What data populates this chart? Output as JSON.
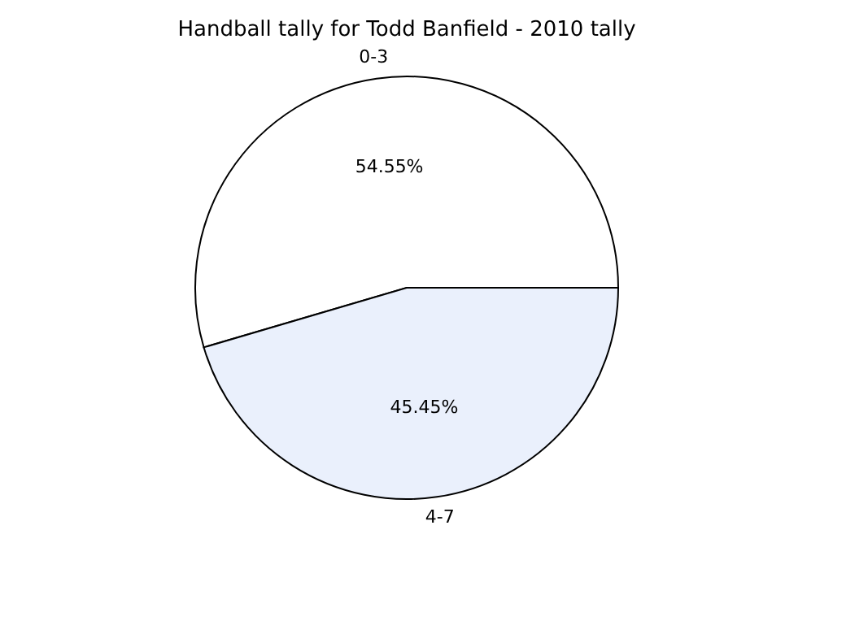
{
  "chart_data": {
    "type": "pie",
    "title": "Handball tally for Todd Banfield - 2010 tally",
    "categories": [
      "0-3",
      "4-7"
    ],
    "values": [
      54.55,
      45.45
    ],
    "colors": [
      "#ffffff",
      "#eaf0fc"
    ],
    "value_labels": [
      "54.55%",
      "45.45%"
    ],
    "legend": false
  }
}
